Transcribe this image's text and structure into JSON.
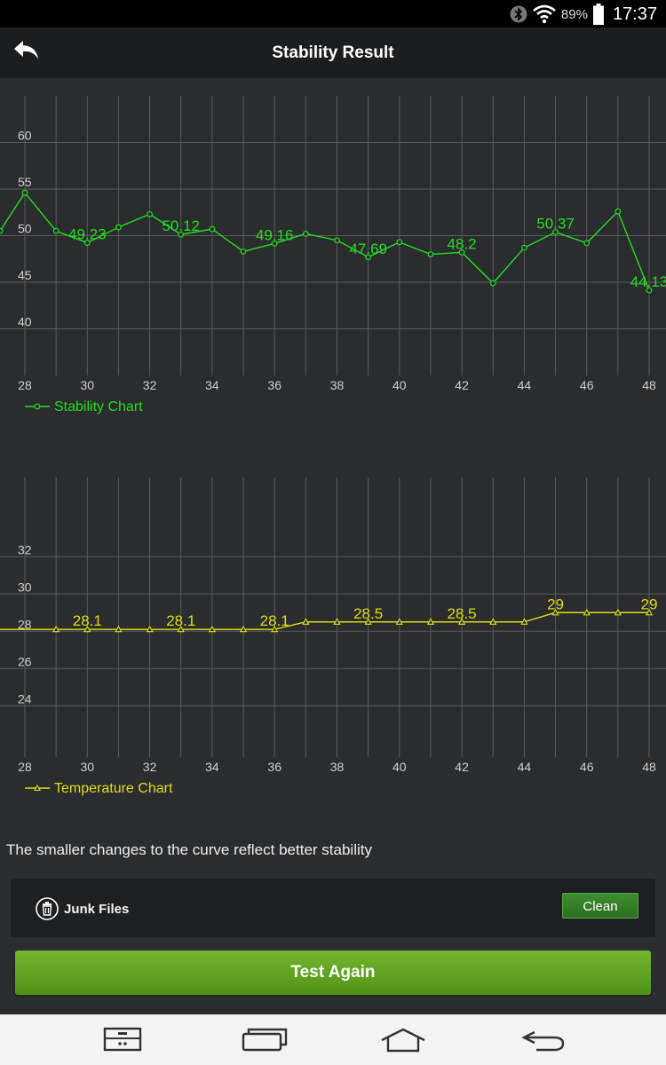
{
  "status_bar": {
    "battery_percent": "89%",
    "time": "17:37",
    "icons": [
      "bluetooth-icon",
      "wifi-icon",
      "battery-icon"
    ]
  },
  "app_bar": {
    "title": "Stability Result",
    "back_icon": "back-arrow-icon"
  },
  "colors": {
    "stability": "#22dd22",
    "temperature": "#dddd10",
    "background": "#2b2c2e",
    "accent_green": "#5fa823"
  },
  "chart_data": [
    {
      "type": "line",
      "legend": "Stability Chart",
      "x": [
        27,
        28,
        29,
        30,
        31,
        32,
        33,
        34,
        35,
        36,
        37,
        38,
        39,
        40,
        41,
        42,
        43,
        44,
        45,
        46,
        47,
        48
      ],
      "values": [
        50.5,
        54.6,
        50.5,
        49.23,
        50.9,
        52.3,
        50.12,
        50.7,
        48.3,
        49.16,
        50.2,
        49.5,
        47.69,
        49.3,
        48.0,
        48.2,
        44.9,
        48.7,
        50.37,
        49.2,
        52.6,
        44.13
      ],
      "data_labels": [
        {
          "x": 30,
          "text": "49.23"
        },
        {
          "x": 33,
          "text": "50.12"
        },
        {
          "x": 36,
          "text": "49.16"
        },
        {
          "x": 39,
          "text": "47.69"
        },
        {
          "x": 42,
          "text": "48.2"
        },
        {
          "x": 45,
          "text": "50.37"
        },
        {
          "x": 48,
          "text": "44.13"
        }
      ],
      "xticks": [
        "28",
        "30",
        "32",
        "34",
        "36",
        "38",
        "40",
        "42",
        "44",
        "46",
        "48"
      ],
      "yticks": [
        "40",
        "45",
        "50",
        "55",
        "60"
      ],
      "xlim": [
        27.2,
        48.2
      ],
      "ylim": [
        35,
        65
      ],
      "grid": true,
      "legend_position": "bottom-left"
    },
    {
      "type": "line",
      "legend": "Temperature Chart",
      "x": [
        27,
        29,
        30,
        31,
        32,
        33,
        34,
        35,
        36,
        37,
        38,
        39,
        40,
        41,
        42,
        43,
        44,
        45,
        46,
        47,
        48
      ],
      "values": [
        28.1,
        28.1,
        28.1,
        28.1,
        28.1,
        28.1,
        28.1,
        28.1,
        28.1,
        28.5,
        28.5,
        28.5,
        28.5,
        28.5,
        28.5,
        28.5,
        28.5,
        29,
        29,
        29,
        29
      ],
      "data_labels": [
        {
          "x": 30,
          "text": "28.1"
        },
        {
          "x": 33,
          "text": "28.1"
        },
        {
          "x": 36,
          "text": "28.1"
        },
        {
          "x": 39,
          "text": "28.5"
        },
        {
          "x": 42,
          "text": "28.5"
        },
        {
          "x": 45,
          "text": "29"
        },
        {
          "x": 48,
          "text": "29"
        }
      ],
      "xticks": [
        "28",
        "30",
        "32",
        "34",
        "36",
        "38",
        "40",
        "42",
        "44",
        "46",
        "48"
      ],
      "yticks": [
        "24",
        "26",
        "28",
        "30",
        "32"
      ],
      "xlim": [
        27.2,
        48.2
      ],
      "ylim": [
        21.25,
        36.25
      ],
      "grid": true,
      "legend_position": "bottom-left"
    }
  ],
  "hint_text": "The smaller changes to the curve reflect better stability",
  "junk": {
    "label": "Junk Files",
    "icon": "trash-icon",
    "clean_label": "Clean"
  },
  "test_again_label": "Test Again",
  "nav_bar": [
    "recent-apps-grid-icon",
    "multitask-icon",
    "home-icon",
    "back-icon"
  ]
}
